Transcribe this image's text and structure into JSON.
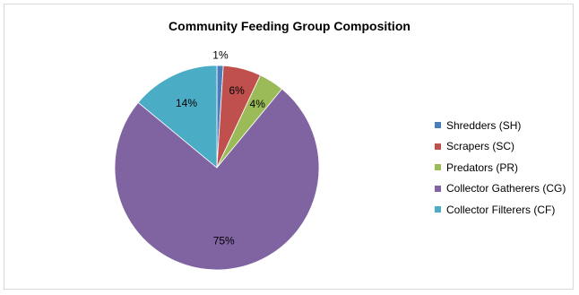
{
  "chart_data": {
    "type": "pie",
    "title": "Community Feeding Group Composition",
    "categories": [
      "Shredders (SH)",
      "Scrapers (SC)",
      "Predators (PR)",
      "Collector Gatherers (CG)",
      "Collector Filterers (CF)"
    ],
    "values": [
      1,
      6,
      4,
      75,
      14
    ],
    "labels": [
      "1%",
      "6%",
      "4%",
      "75%",
      "14%"
    ],
    "colors": [
      "#4a7ebb",
      "#c0504d",
      "#9bbb59",
      "#8064a2",
      "#4bacc6"
    ],
    "start_angle_deg": 0,
    "direction": "clockwise",
    "legend_position": "right",
    "grid": false
  }
}
